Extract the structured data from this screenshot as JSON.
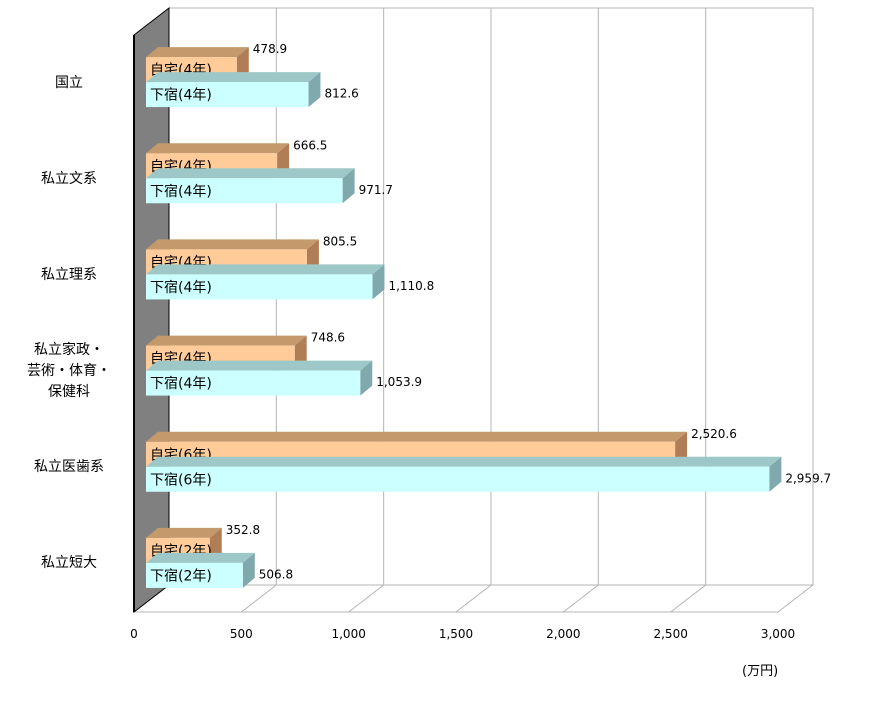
{
  "chart_data": {
    "type": "bar",
    "orientation": "horizontal",
    "style": "3d",
    "categories": [
      "国立",
      "私立文系",
      "私立理系",
      "私立家政・芸術・体育・保健科",
      "私立医歯系",
      "私立短大"
    ],
    "category_lines": [
      [
        "国立"
      ],
      [
        "私立文系"
      ],
      [
        "私立理系"
      ],
      [
        "私立家政・",
        "芸術・体育・",
        "保健科"
      ],
      [
        "私立医歯系"
      ],
      [
        "私立短大"
      ]
    ],
    "series": [
      {
        "role": "home",
        "color": "#FFCC99",
        "bar_labels": [
          "自宅(4年)",
          "自宅(4年)",
          "自宅(4年)",
          "自宅(4年)",
          "自宅(6年)",
          "自宅(2年)"
        ],
        "values": [
          478.9,
          666.5,
          805.5,
          748.6,
          2520.6,
          352.8
        ],
        "value_labels": [
          "478.9",
          "666.5",
          "805.5",
          "748.6",
          "2,520.6",
          "352.8"
        ]
      },
      {
        "role": "lodging",
        "color": "#CCFFFF",
        "bar_labels": [
          "下宿(4年)",
          "下宿(4年)",
          "下宿(4年)",
          "下宿(4年)",
          "下宿(6年)",
          "下宿(2年)"
        ],
        "values": [
          812.6,
          971.7,
          1110.8,
          1053.9,
          2959.7,
          506.8
        ],
        "value_labels": [
          "812.6",
          "971.7",
          "1,110.8",
          "1,053.9",
          "2,959.7",
          "506.8"
        ]
      }
    ],
    "xlim": [
      0,
      3000
    ],
    "x_ticks": [
      0,
      500,
      1000,
      1500,
      2000,
      2500,
      3000
    ],
    "x_tick_labels": [
      "0",
      "500",
      "1,000",
      "1,500",
      "2,000",
      "2,500",
      "3,000"
    ],
    "unit_label": "(万円)",
    "grid": true,
    "legend": "none"
  }
}
